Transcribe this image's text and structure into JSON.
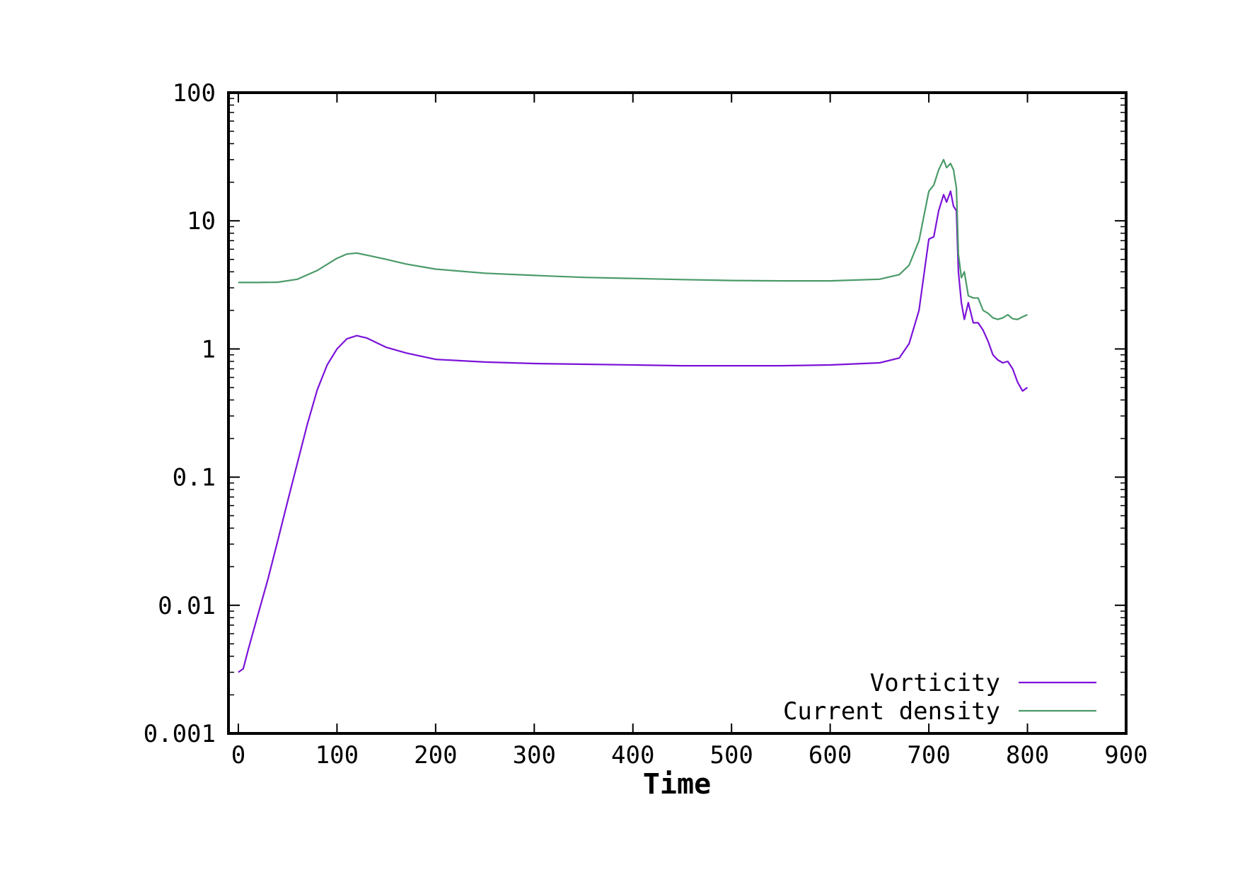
{
  "chart_data": {
    "type": "line",
    "title": "",
    "xlabel": "Time",
    "ylabel": "",
    "xlim": [
      -10,
      900
    ],
    "ylim": [
      0.001,
      100
    ],
    "yscale": "log",
    "grid": false,
    "legend_position": "bottom-right",
    "x_tick_labels": [
      "0",
      "100",
      "200",
      "300",
      "400",
      "500",
      "600",
      "700",
      "800",
      "900"
    ],
    "y_tick_labels": [
      "0.001",
      "0.01",
      "0.1",
      "1",
      "10",
      "100"
    ],
    "series": [
      {
        "name": "Vorticity",
        "color": "#7b12d8",
        "x": [
          0,
          5,
          10,
          20,
          30,
          40,
          50,
          60,
          70,
          80,
          90,
          100,
          110,
          120,
          130,
          140,
          150,
          170,
          200,
          250,
          300,
          350,
          400,
          450,
          500,
          550,
          600,
          650,
          670,
          680,
          690,
          700,
          705,
          710,
          715,
          718,
          722,
          725,
          728,
          730,
          733,
          736,
          740,
          745,
          750,
          755,
          760,
          765,
          770,
          775,
          780,
          785,
          790,
          795,
          800
        ],
        "y": [
          0.003,
          0.0032,
          0.0045,
          0.0085,
          0.016,
          0.032,
          0.065,
          0.13,
          0.26,
          0.48,
          0.75,
          1.0,
          1.2,
          1.27,
          1.22,
          1.12,
          1.03,
          0.93,
          0.83,
          0.79,
          0.77,
          0.76,
          0.75,
          0.74,
          0.74,
          0.74,
          0.75,
          0.78,
          0.85,
          1.1,
          2.0,
          7.2,
          7.5,
          12,
          16,
          14,
          17,
          13,
          12,
          4,
          2.3,
          1.7,
          2.3,
          1.6,
          1.6,
          1.4,
          1.15,
          0.9,
          0.82,
          0.78,
          0.8,
          0.7,
          0.55,
          0.47,
          0.5
        ]
      },
      {
        "name": "Current density",
        "color": "#4a9a68",
        "x": [
          0,
          20,
          40,
          60,
          80,
          100,
          110,
          120,
          130,
          150,
          170,
          200,
          250,
          300,
          350,
          400,
          450,
          500,
          550,
          600,
          650,
          670,
          680,
          690,
          700,
          705,
          710,
          715,
          718,
          722,
          725,
          728,
          730,
          733,
          736,
          740,
          745,
          750,
          755,
          760,
          765,
          770,
          775,
          780,
          785,
          790,
          795,
          800
        ],
        "y": [
          3.3,
          3.3,
          3.32,
          3.5,
          4.1,
          5.1,
          5.5,
          5.6,
          5.4,
          5.0,
          4.6,
          4.2,
          3.9,
          3.75,
          3.62,
          3.55,
          3.48,
          3.42,
          3.4,
          3.4,
          3.5,
          3.8,
          4.5,
          7.0,
          17,
          19,
          25,
          30,
          26,
          28,
          25,
          18,
          5.5,
          3.6,
          4.0,
          2.6,
          2.5,
          2.5,
          2.0,
          1.9,
          1.75,
          1.7,
          1.75,
          1.85,
          1.72,
          1.7,
          1.78,
          1.85
        ]
      }
    ]
  }
}
